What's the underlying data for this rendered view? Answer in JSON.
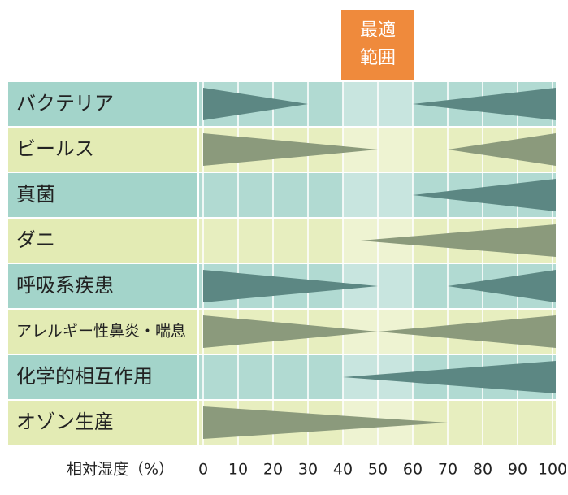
{
  "chart_data": {
    "type": "wedge",
    "categories": [
      "バクテリア",
      "ビールス",
      "真菌",
      "ダニ",
      "呼吸系疾患",
      "アレルギー性鼻炎・喘息",
      "化学的相互作用",
      "オゾン生産"
    ],
    "left_end": [
      30,
      50,
      null,
      null,
      50,
      50,
      null,
      70
    ],
    "right_start": [
      60,
      70,
      60,
      45,
      70,
      50,
      40,
      null
    ],
    "optimal_range": {
      "label": [
        "最適",
        "範囲"
      ],
      "from": 40,
      "to": 60,
      "color": "#ef8a3c"
    },
    "x_label": "相対湿度（%）",
    "xlim": [
      0,
      100
    ],
    "xticks": [
      0,
      10,
      20,
      30,
      40,
      50,
      60,
      70,
      80,
      90,
      100
    ],
    "row_colors": [
      "#a3d4ca",
      "#e3ebb4"
    ],
    "wedge_colors": [
      "#5c8783",
      "#8b9a7c"
    ],
    "grid": true
  }
}
